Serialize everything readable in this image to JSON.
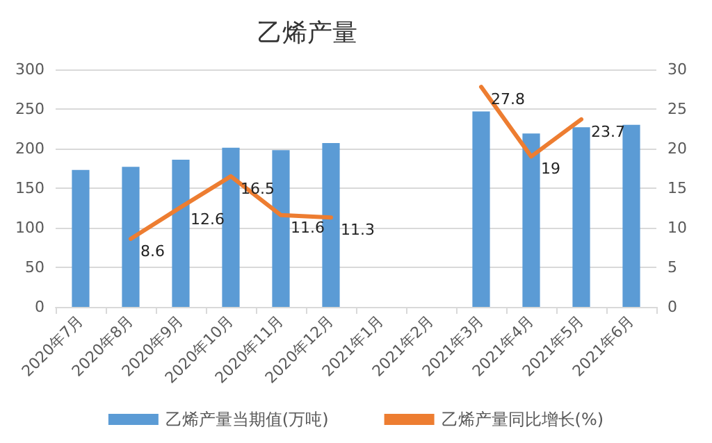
{
  "chart_data": {
    "type": "bar",
    "title": "乙烯产量",
    "categories": [
      "2020年7月",
      "2020年8月",
      "2020年9月",
      "2020年10月",
      "2020年11月",
      "2020年12月",
      "2021年1月",
      "2021年2月",
      "2021年3月",
      "2021年4月",
      "2021年5月",
      "2021年6月"
    ],
    "series": [
      {
        "name": "乙烯产量当期值(万吨)",
        "color": "#5b9bd5",
        "values": [
          173,
          177,
          186,
          201,
          198,
          207,
          null,
          null,
          247,
          219,
          227,
          230
        ]
      },
      {
        "name": "乙烯产量同比增长(%)",
        "type": "line",
        "axis": "y2",
        "color": "#ed7d31",
        "marker": "none",
        "values": [
          null,
          8.6,
          12.6,
          16.5,
          11.6,
          11.3,
          null,
          null,
          27.8,
          19,
          23.7,
          null
        ],
        "value_labels": [
          null,
          "8.6",
          "12.6",
          "16.5",
          "11.6",
          "11.3",
          null,
          null,
          "27.8",
          "19",
          "23.7",
          null
        ]
      }
    ],
    "ylim": [
      0,
      300
    ],
    "yticks": [
      0,
      50,
      100,
      150,
      200,
      250,
      300
    ],
    "y2lim": [
      0,
      30
    ],
    "y2ticks": [
      0,
      5,
      10,
      15,
      20,
      25,
      30
    ],
    "grid": "y",
    "legend": "bottom"
  }
}
